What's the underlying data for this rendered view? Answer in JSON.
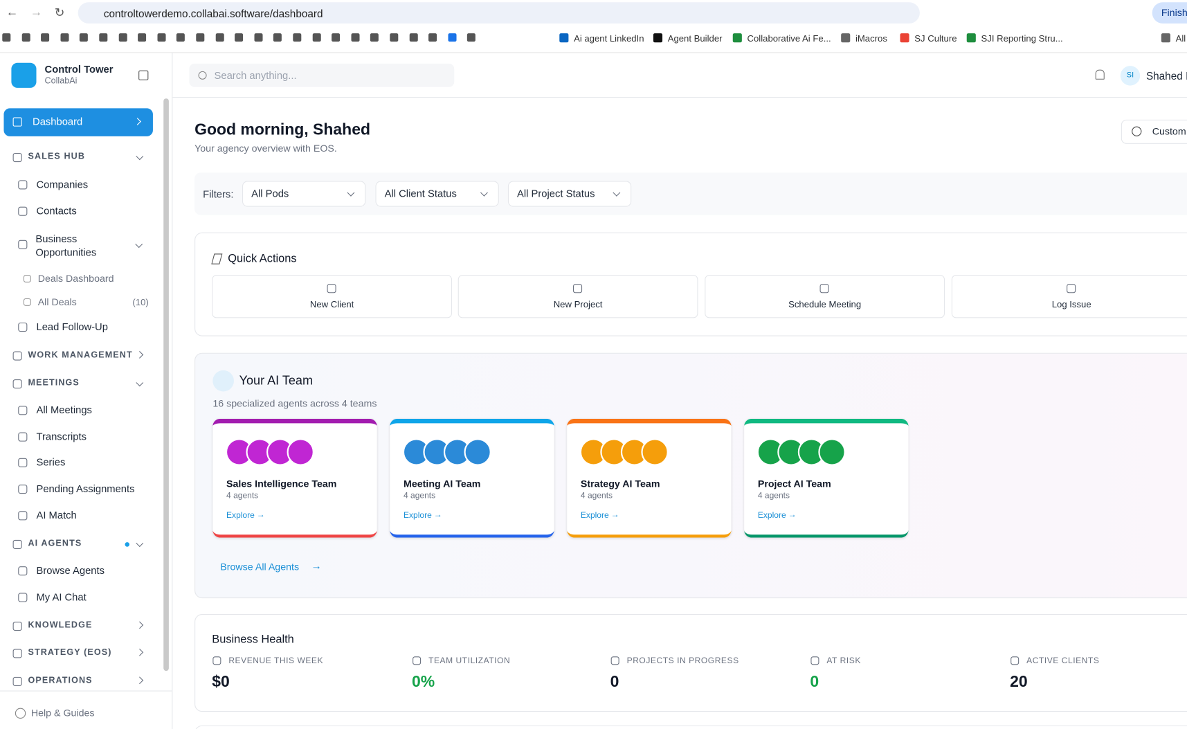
{
  "browser": {
    "url": "controltowerdemo.collabai.software/dashboard",
    "profile_button": "Finish",
    "bookmarks": [
      "Ai agent LinkedIn",
      "Agent Builder",
      "Collaborative Ai Fe...",
      "iMacros",
      "SJ Culture",
      "SJI Reporting Stru...",
      "All"
    ]
  },
  "sidebar": {
    "app_name": "Control Tower",
    "app_subtitle": "CollabAi",
    "nav": [
      "Dashboard",
      "SALES HUB",
      "Companies",
      "Contacts",
      "Business Opportunities",
      "Deals Dashboard",
      "All Deals",
      "Lead Follow-Up",
      "WORK MANAGEMENT",
      "MEETINGS",
      "All Meetings",
      "Transcripts",
      "Series",
      "Pending Assignments",
      "AI Match",
      "AI AGENTS",
      "Browse Agents",
      "My AI Chat",
      "KNOWLEDGE",
      "STRATEGY (EOS)",
      "OPERATIONS"
    ],
    "all_deals_count": "(10)",
    "help": "Help & Guides"
  },
  "header": {
    "search_placeholder": "Search anything...",
    "user_initials": "SI",
    "user_name": "Shahed I"
  },
  "main": {
    "greeting": "Good morning, Shahed",
    "subtitle": "Your agency overview with EOS.",
    "customize": "Custom",
    "filters_label": "Filters:",
    "filters": [
      "All Pods",
      "All Client Status",
      "All Project Status"
    ],
    "quick_actions_title": "Quick Actions",
    "quick_actions": [
      "New Client",
      "New Project",
      "Schedule Meeting",
      "Log Issue"
    ],
    "ai_team_title": "Your AI Team",
    "ai_team_subtitle": "16 specialized agents across 4 teams",
    "teams": [
      {
        "name": "Sales Intelligence Team",
        "agents": "4 agents",
        "link": "Explore"
      },
      {
        "name": "Meeting AI Team",
        "agents": "4 agents",
        "link": "Explore"
      },
      {
        "name": "Strategy AI Team",
        "agents": "4 agents",
        "link": "Explore"
      },
      {
        "name": "Project AI Team",
        "agents": "4 agents",
        "link": "Explore"
      }
    ],
    "browse_all": "Browse All Agents",
    "health_title": "Business Health",
    "health": [
      {
        "label": "REVENUE THIS WEEK",
        "value": "$0"
      },
      {
        "label": "TEAM UTILIZATION",
        "value": "0%"
      },
      {
        "label": "PROJECTS IN PROGRESS",
        "value": "0"
      },
      {
        "label": "AT RISK",
        "value": "0"
      },
      {
        "label": "ACTIVE CLIENTS",
        "value": "20"
      }
    ]
  }
}
